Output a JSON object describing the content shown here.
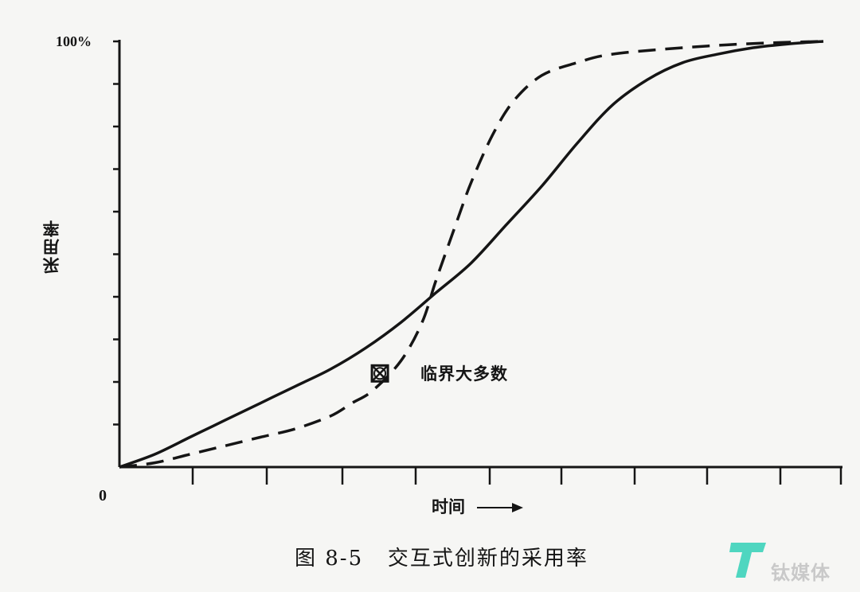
{
  "chart_data": {
    "type": "line",
    "caption": "图 8-5   交互式创新的采用率",
    "ylabel": "采用率",
    "xlabel": "时间",
    "ytick_top": "100%",
    "origin": "0",
    "ylim": [
      0,
      100
    ],
    "xlim": [
      0,
      100
    ],
    "annotation": {
      "text": "临界大多数",
      "x": 37,
      "y": 22
    },
    "series": [
      {
        "style": "solid",
        "x": [
          0,
          5,
          10,
          15,
          20,
          25,
          30,
          35,
          40,
          45,
          50,
          55,
          60,
          65,
          70,
          75,
          80,
          85,
          90,
          95,
          100
        ],
        "y": [
          0,
          3,
          7,
          11,
          15,
          19,
          23,
          28,
          34,
          41,
          48,
          57,
          66,
          76,
          85,
          91,
          95,
          97,
          98.5,
          99.4,
          100
        ]
      },
      {
        "style": "dashed",
        "x": [
          0,
          5,
          10,
          15,
          20,
          25,
          30,
          33,
          36,
          40,
          43,
          45,
          48,
          50,
          53,
          56,
          60,
          65,
          70,
          80,
          90,
          100
        ],
        "y": [
          0,
          1,
          3,
          5,
          7,
          9,
          12,
          15,
          18,
          25,
          34,
          44,
          58,
          67,
          78,
          86,
          92,
          95,
          97,
          98.5,
          99.5,
          100
        ]
      }
    ]
  },
  "watermark": {
    "text": "钛媒体"
  }
}
